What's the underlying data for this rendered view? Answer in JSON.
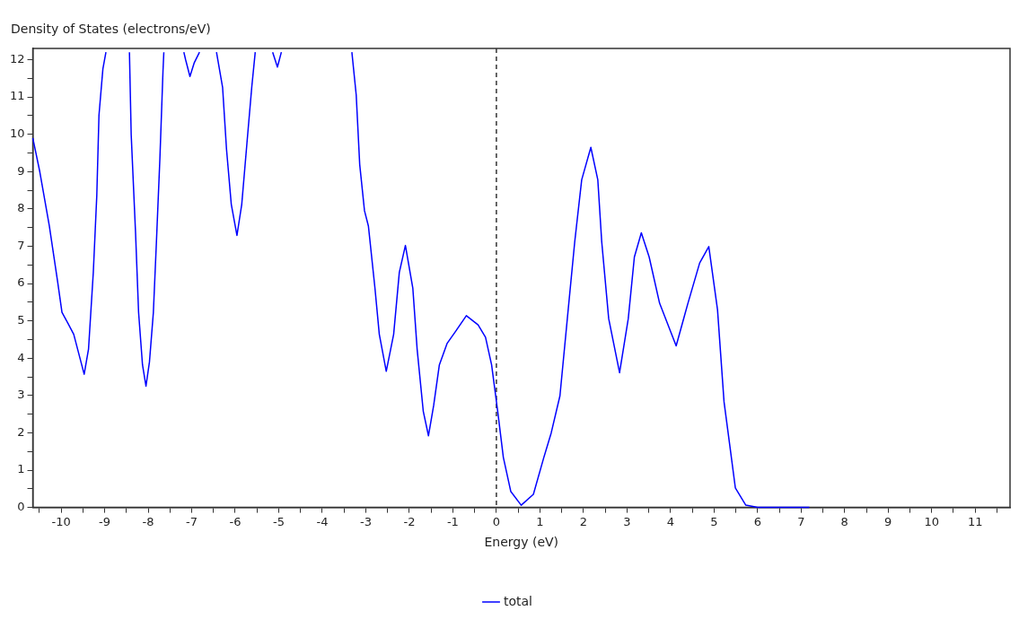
{
  "chart_data": {
    "type": "line",
    "ylabel": "Density of States (electrons/eV)",
    "xlabel": "Energy (eV)",
    "xlim": [
      -10.65,
      11.8
    ],
    "ylim": [
      0,
      12.3
    ],
    "xticks": [
      {
        "value": -10.5,
        "label": null
      },
      -10,
      {
        "value": -9.5,
        "label": null
      },
      -9,
      {
        "value": -8.5,
        "label": null
      },
      -8,
      {
        "value": -7.5,
        "label": null
      },
      -7,
      {
        "value": -6.5,
        "label": null
      },
      -6,
      {
        "value": -5.5,
        "label": null
      },
      -5,
      {
        "value": -4.5,
        "label": null
      },
      -4,
      {
        "value": -3.5,
        "label": null
      },
      -3,
      {
        "value": -2.5,
        "label": null
      },
      -2,
      {
        "value": -1.5,
        "label": null
      },
      -1,
      {
        "value": -0.5,
        "label": null
      },
      0,
      {
        "value": 0.5,
        "label": null
      },
      1,
      {
        "value": 1.5,
        "label": null
      },
      2,
      {
        "value": 2.5,
        "label": null
      },
      3,
      {
        "value": 3.5,
        "label": null
      },
      4,
      {
        "value": 4.5,
        "label": null
      },
      5,
      {
        "value": 5.5,
        "label": null
      },
      6,
      {
        "value": 6.5,
        "label": null
      },
      7,
      {
        "value": 7.5,
        "label": null
      },
      8,
      {
        "value": 8.5,
        "label": null
      },
      9,
      {
        "value": 9.5,
        "label": null
      },
      10,
      {
        "value": 10.5,
        "label": null
      },
      11,
      {
        "value": 11.5,
        "label": null
      }
    ],
    "yticks": [
      0,
      {
        "value": 0.5,
        "label": null
      },
      1,
      {
        "value": 1.5,
        "label": null
      },
      2,
      {
        "value": 2.5,
        "label": null
      },
      3,
      {
        "value": 3.5,
        "label": null
      },
      4,
      {
        "value": 4.5,
        "label": null
      },
      5,
      {
        "value": 5.5,
        "label": null
      },
      6,
      {
        "value": 6.5,
        "label": null
      },
      7,
      {
        "value": 7.5,
        "label": null
      },
      8,
      {
        "value": 8.5,
        "label": null
      },
      9,
      {
        "value": 9.5,
        "label": null
      },
      10,
      {
        "value": 10.5,
        "label": null
      },
      11,
      {
        "value": 11.5,
        "label": null
      },
      12
    ],
    "grid": false,
    "legend": "bottom",
    "marker": "none",
    "line_style": "solid",
    "ref_lines": [
      {
        "axis": "x",
        "value": 0,
        "label": null,
        "color": "#333333",
        "line_style": "dashed"
      }
    ],
    "series": [
      {
        "name": "total",
        "color": "#0000ff",
        "x": [
          -10.65,
          -10.49,
          -10.27,
          -10.08,
          -9.98,
          -9.84,
          -9.71,
          -9.47,
          -9.37,
          -9.26,
          -9.18,
          -9.13,
          -9.04,
          -8.97,
          -8.7,
          -8.43,
          -8.39,
          -8.29,
          -8.22,
          -8.13,
          -8.05,
          -7.97,
          -7.88,
          -7.81,
          -7.73,
          -7.66,
          -7.64,
          -7.4,
          -7.18,
          -7.14,
          -7.04,
          -6.94,
          -6.82,
          -6.6,
          -6.43,
          -6.29,
          -6.2,
          -6.09,
          -5.96,
          -5.85,
          -5.73,
          -5.62,
          -5.54,
          -5.3,
          -5.14,
          -5.03,
          -4.94,
          -4.2,
          -3.32,
          -3.22,
          -3.14,
          -3.03,
          -2.94,
          -2.79,
          -2.69,
          -2.53,
          -2.36,
          -2.23,
          -2.09,
          -1.92,
          -1.82,
          -1.68,
          -1.56,
          -1.44,
          -1.31,
          -1.13,
          -0.93,
          -0.69,
          -0.42,
          -0.25,
          -0.11,
          0.03,
          0.16,
          0.33,
          0.57,
          0.85,
          1.09,
          1.26,
          1.46,
          1.63,
          1.8,
          1.96,
          2.17,
          2.33,
          2.42,
          2.58,
          2.83,
          3.03,
          3.17,
          3.33,
          3.51,
          3.75,
          4.13,
          4.4,
          4.67,
          4.88,
          5.08,
          5.23,
          5.37,
          5.49,
          5.73,
          6.0,
          7.19
        ],
        "values": [
          9.9,
          9.0,
          7.54,
          6.05,
          5.23,
          4.93,
          4.64,
          3.57,
          4.24,
          6.3,
          8.36,
          10.51,
          11.75,
          12.2,
          null,
          12.2,
          10.0,
          7.37,
          5.23,
          3.82,
          3.25,
          3.9,
          5.23,
          7.12,
          9.36,
          11.67,
          12.2,
          null,
          12.2,
          12.0,
          11.55,
          11.92,
          12.2,
          null,
          12.2,
          11.26,
          9.6,
          8.12,
          7.29,
          8.12,
          9.77,
          11.26,
          12.2,
          null,
          12.2,
          11.8,
          12.2,
          null,
          12.2,
          11.05,
          9.19,
          7.95,
          7.54,
          5.88,
          4.64,
          3.65,
          4.64,
          6.3,
          7.02,
          5.88,
          4.23,
          2.58,
          1.92,
          2.74,
          3.82,
          4.4,
          4.73,
          5.14,
          4.89,
          4.56,
          3.82,
          2.58,
          1.34,
          0.43,
          0.06,
          0.35,
          1.34,
          2.0,
          2.99,
          5.06,
          7.12,
          8.78,
          9.65,
          8.78,
          7.12,
          5.06,
          3.61,
          5.06,
          6.71,
          7.36,
          6.71,
          5.47,
          4.33,
          5.47,
          6.55,
          6.99,
          5.3,
          2.83,
          1.59,
          0.52,
          0.06,
          0,
          0
        ]
      }
    ]
  }
}
